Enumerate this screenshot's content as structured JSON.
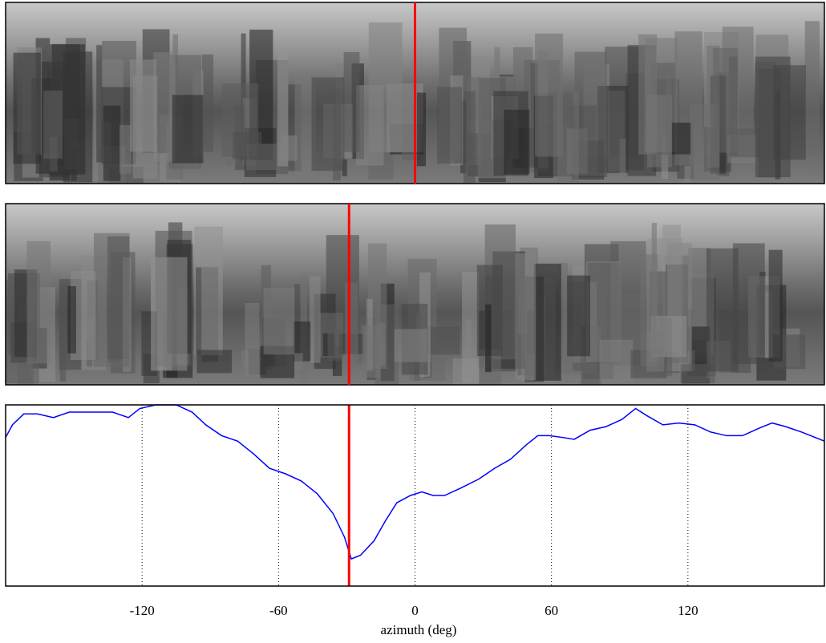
{
  "chart_data": {
    "type": "line",
    "x": [
      -180,
      -177,
      -172,
      -166,
      -159,
      -152,
      -145,
      -138,
      -133,
      -126,
      -121,
      -114,
      -105,
      -98,
      -92,
      -85,
      -78,
      -71,
      -64,
      -57,
      -50,
      -43,
      -36,
      -31,
      -28,
      -24,
      -18,
      -13,
      -8,
      -2,
      3,
      8,
      13,
      20,
      28,
      35,
      42,
      49,
      54,
      59,
      65,
      70,
      77,
      84,
      91,
      97,
      102,
      109,
      116,
      123,
      130,
      137,
      144,
      151,
      157,
      163,
      170,
      180
    ],
    "values": [
      0.82,
      0.89,
      0.95,
      0.95,
      0.93,
      0.96,
      0.96,
      0.96,
      0.96,
      0.93,
      0.98,
      1.0,
      1.0,
      0.96,
      0.89,
      0.83,
      0.8,
      0.73,
      0.65,
      0.62,
      0.58,
      0.51,
      0.4,
      0.27,
      0.15,
      0.17,
      0.25,
      0.36,
      0.46,
      0.5,
      0.52,
      0.5,
      0.5,
      0.54,
      0.59,
      0.65,
      0.7,
      0.78,
      0.83,
      0.83,
      0.82,
      0.81,
      0.86,
      0.88,
      0.92,
      0.98,
      0.94,
      0.89,
      0.9,
      0.89,
      0.85,
      0.83,
      0.83,
      0.87,
      0.9,
      0.88,
      0.85,
      0.8
    ],
    "color": "#0000ff",
    "xlim": [
      -180,
      180
    ],
    "ylim": [
      0,
      1
    ],
    "xticks": [
      -120,
      -60,
      0,
      60,
      120
    ],
    "grid": true,
    "xlabel": "azimuth (deg)",
    "marker": -29,
    "marker_color": "#ff0000",
    "image_panels": [
      {
        "marker_azimuth": 0
      },
      {
        "marker_azimuth": -29
      }
    ]
  }
}
